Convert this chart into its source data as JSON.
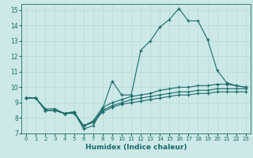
{
  "xlabel": "Humidex (Indice chaleur)",
  "ylabel": "",
  "xlim": [
    -0.5,
    23.5
  ],
  "ylim": [
    7,
    15.4
  ],
  "yticks": [
    7,
    8,
    9,
    10,
    11,
    12,
    13,
    14,
    15
  ],
  "xticks": [
    0,
    1,
    2,
    3,
    4,
    5,
    6,
    7,
    8,
    9,
    10,
    11,
    12,
    13,
    14,
    15,
    16,
    17,
    18,
    19,
    20,
    21,
    22,
    23
  ],
  "bg_color": "#cce9e7",
  "grid_color": "#b8d8d5",
  "line_color": "#1a6b6b",
  "curves": [
    {
      "x": [
        0,
        1,
        2,
        3,
        4,
        5,
        6,
        7,
        8,
        9,
        10,
        11,
        12,
        13,
        14,
        15,
        16,
        17,
        18,
        19,
        20,
        21,
        22,
        23
      ],
      "y": [
        9.3,
        9.3,
        8.6,
        8.6,
        8.3,
        8.4,
        7.3,
        7.5,
        8.6,
        10.4,
        9.5,
        9.5,
        12.4,
        13.0,
        13.9,
        14.4,
        15.1,
        14.3,
        14.3,
        13.1,
        11.1,
        10.3,
        10.1,
        10.0
      ]
    },
    {
      "x": [
        0,
        1,
        2,
        3,
        4,
        5,
        6,
        7,
        8,
        9,
        10,
        11,
        12,
        13,
        14,
        15,
        16,
        17,
        18,
        19,
        20,
        21,
        22,
        23
      ],
      "y": [
        9.3,
        9.3,
        8.5,
        8.5,
        8.3,
        8.4,
        7.5,
        7.8,
        8.7,
        9.0,
        9.2,
        9.4,
        9.5,
        9.6,
        9.8,
        9.9,
        10.0,
        10.0,
        10.1,
        10.1,
        10.2,
        10.2,
        10.1,
        10.0
      ]
    },
    {
      "x": [
        0,
        1,
        2,
        3,
        4,
        5,
        6,
        7,
        8,
        9,
        10,
        11,
        12,
        13,
        14,
        15,
        16,
        17,
        18,
        19,
        20,
        21,
        22,
        23
      ],
      "y": [
        9.3,
        9.3,
        8.5,
        8.5,
        8.3,
        8.4,
        7.5,
        7.8,
        8.5,
        8.8,
        9.0,
        9.2,
        9.3,
        9.4,
        9.5,
        9.6,
        9.7,
        9.7,
        9.8,
        9.8,
        9.9,
        9.9,
        9.9,
        9.9
      ]
    },
    {
      "x": [
        0,
        1,
        2,
        3,
        4,
        5,
        6,
        7,
        8,
        9,
        10,
        11,
        12,
        13,
        14,
        15,
        16,
        17,
        18,
        19,
        20,
        21,
        22,
        23
      ],
      "y": [
        9.3,
        9.3,
        8.5,
        8.5,
        8.3,
        8.3,
        7.5,
        7.7,
        8.4,
        8.7,
        8.9,
        9.0,
        9.1,
        9.2,
        9.3,
        9.4,
        9.5,
        9.5,
        9.6,
        9.6,
        9.7,
        9.7,
        9.7,
        9.7
      ]
    }
  ]
}
